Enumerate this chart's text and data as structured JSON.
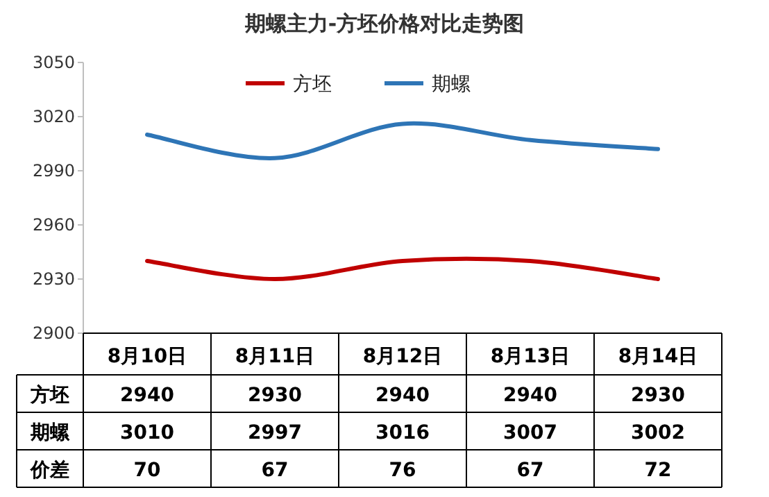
{
  "chart_data": {
    "type": "line",
    "title": "期螺主力-方坯价格对比走势图",
    "categories": [
      "8月10日",
      "8月11日",
      "8月12日",
      "8月13日",
      "8月14日"
    ],
    "series": [
      {
        "name": "方坯",
        "color": "#c00000",
        "values": [
          2940,
          2930,
          2940,
          2940,
          2930
        ]
      },
      {
        "name": "期螺",
        "color": "#2e75b6",
        "values": [
          3010,
          2997,
          3016,
          3007,
          3002
        ]
      }
    ],
    "annotations": [
      "价差",
      "70",
      "67",
      "76",
      "67",
      "72"
    ],
    "ylim": [
      2900,
      3050
    ],
    "yticks": [
      2900,
      2930,
      2960,
      2990,
      3020,
      3050
    ],
    "legend": "top",
    "data_labels": true,
    "marker": "none",
    "line_style": "solid",
    "grid": false
  }
}
